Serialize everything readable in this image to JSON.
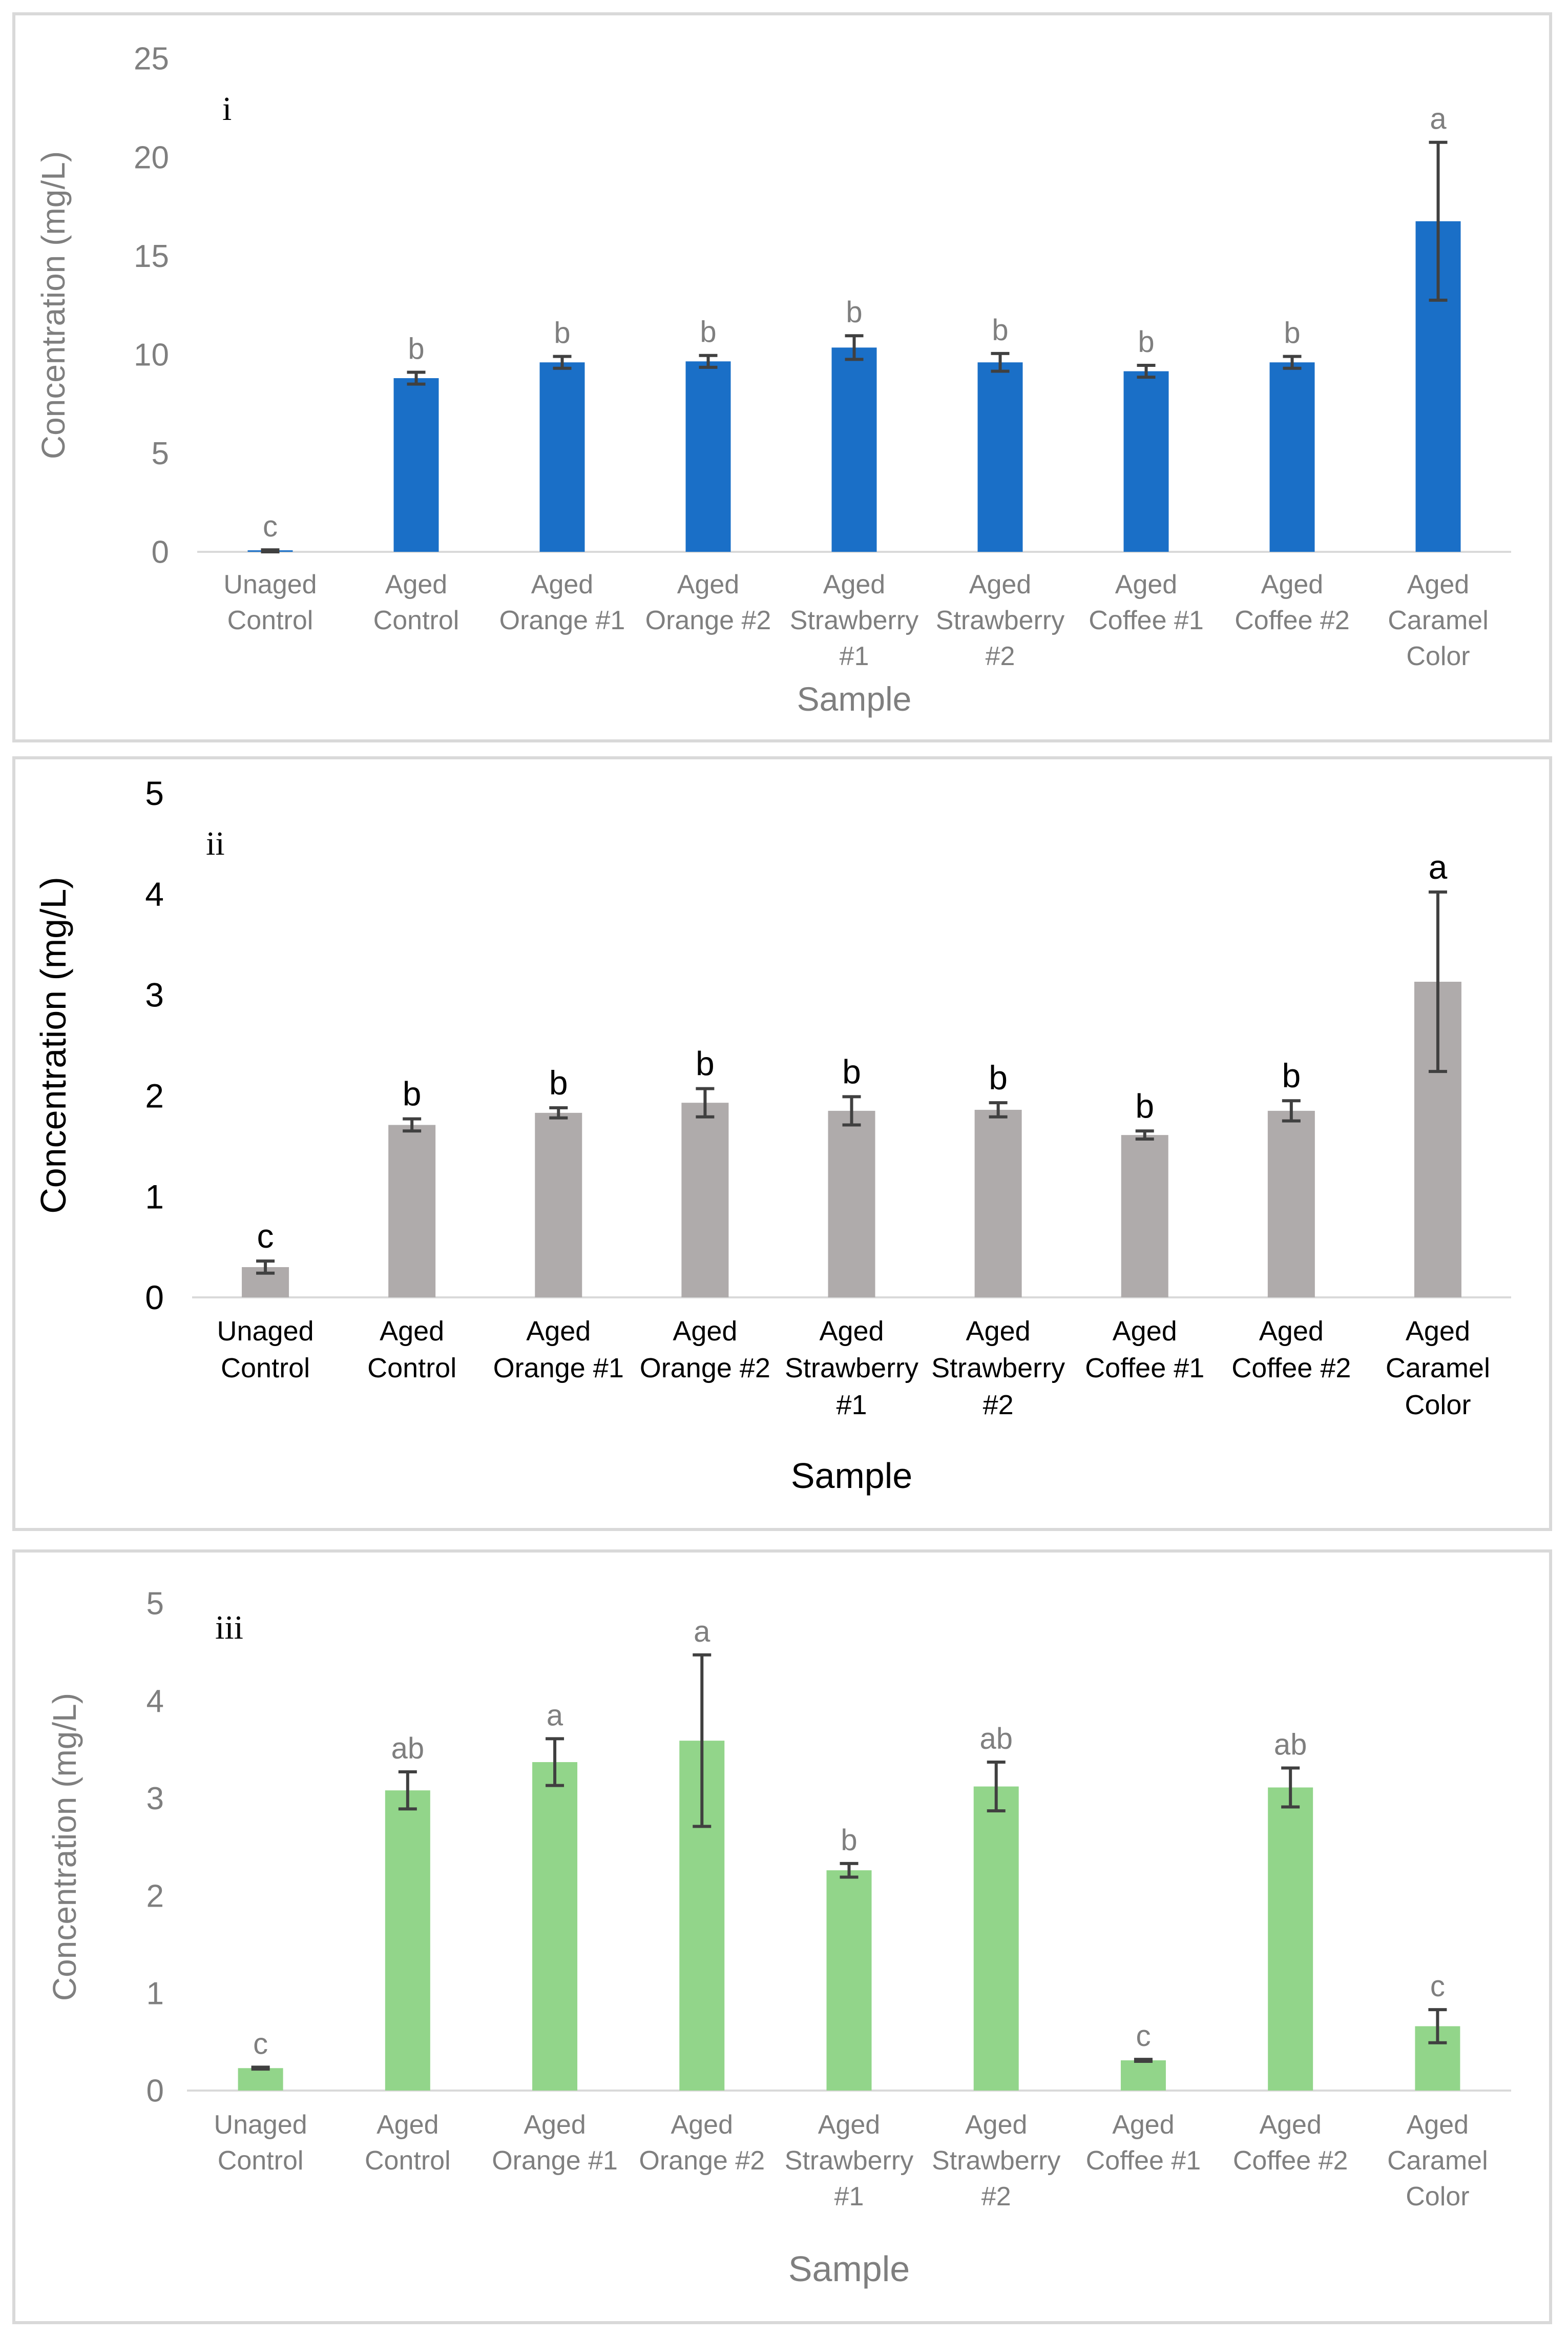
{
  "chart_data": [
    {
      "type": "bar",
      "panel_label": "i",
      "ylabel": "Concentration (mg/L)",
      "xlabel": "Sample",
      "ylim": [
        0,
        25
      ],
      "yticks": [
        "0",
        "5",
        "10",
        "15",
        "20",
        "25"
      ],
      "categories": [
        [
          "Unaged",
          "Control"
        ],
        [
          "Aged",
          "Control"
        ],
        [
          "Aged",
          "Orange #1"
        ],
        [
          "Aged",
          "Orange #2"
        ],
        [
          "Aged",
          "Strawberry",
          "#1"
        ],
        [
          "Aged",
          "Strawberry",
          "#2"
        ],
        [
          "Aged",
          "Coffee #1"
        ],
        [
          "Aged",
          "Coffee #2"
        ],
        [
          "Aged",
          "Caramel",
          "Color"
        ]
      ],
      "values": [
        0.05,
        8.8,
        9.6,
        9.65,
        10.35,
        9.6,
        9.15,
        9.6,
        16.75
      ],
      "errors": [
        0.05,
        0.3,
        0.3,
        0.3,
        0.6,
        0.45,
        0.3,
        0.3,
        4.0
      ],
      "letters": [
        "c",
        "b",
        "b",
        "b",
        "b",
        "b",
        "b",
        "b",
        "a"
      ],
      "color": "#1a6fc7",
      "text_color": "#7f7f7f"
    },
    {
      "type": "bar",
      "panel_label": "ii",
      "ylabel": "Concentration (mg/L)",
      "xlabel": "Sample",
      "ylim": [
        0,
        5
      ],
      "yticks": [
        "0",
        "1",
        "2",
        "3",
        "4",
        "5"
      ],
      "categories": [
        [
          "Unaged",
          "Control"
        ],
        [
          "Aged",
          "Control"
        ],
        [
          "Aged",
          "Orange #1"
        ],
        [
          "Aged",
          "Orange #2"
        ],
        [
          "Aged",
          "Strawberry",
          "#1"
        ],
        [
          "Aged",
          "Strawberry",
          "#2"
        ],
        [
          "Aged",
          "Coffee #1"
        ],
        [
          "Aged",
          "Coffee #2"
        ],
        [
          "Aged",
          "Caramel",
          "Color"
        ]
      ],
      "values": [
        0.3,
        1.71,
        1.83,
        1.93,
        1.85,
        1.86,
        1.61,
        1.85,
        3.13
      ],
      "errors": [
        0.06,
        0.06,
        0.05,
        0.14,
        0.14,
        0.07,
        0.04,
        0.1,
        0.89
      ],
      "letters": [
        "c",
        "b",
        "b",
        "b",
        "b",
        "b",
        "b",
        "b",
        "a"
      ],
      "color": "#afabab",
      "text_color": "#000000"
    },
    {
      "type": "bar",
      "panel_label": "iii",
      "ylabel": "Concentration (mg/L)",
      "xlabel": "Sample",
      "ylim": [
        0,
        5
      ],
      "yticks": [
        "0",
        "1",
        "2",
        "3",
        "4",
        "5"
      ],
      "categories": [
        [
          "Unaged",
          "Control"
        ],
        [
          "Aged",
          "Control"
        ],
        [
          "Aged",
          "Orange #1"
        ],
        [
          "Aged",
          "Orange #2"
        ],
        [
          "Aged",
          "Strawberry",
          "#1"
        ],
        [
          "Aged",
          "Strawberry",
          "#2"
        ],
        [
          "Aged",
          "Coffee #1"
        ],
        [
          "Aged",
          "Coffee #2"
        ],
        [
          "Aged",
          "Caramel",
          "Color"
        ]
      ],
      "values": [
        0.23,
        3.08,
        3.37,
        3.59,
        2.26,
        3.12,
        0.31,
        3.11,
        0.66
      ],
      "errors": [
        0.01,
        0.19,
        0.24,
        0.88,
        0.07,
        0.25,
        0.01,
        0.2,
        0.17
      ],
      "letters": [
        "c",
        "ab",
        "a",
        "a",
        "b",
        "ab",
        "c",
        "ab",
        "c"
      ],
      "color": "#92d58a",
      "text_color": "#7f7f7f"
    }
  ]
}
